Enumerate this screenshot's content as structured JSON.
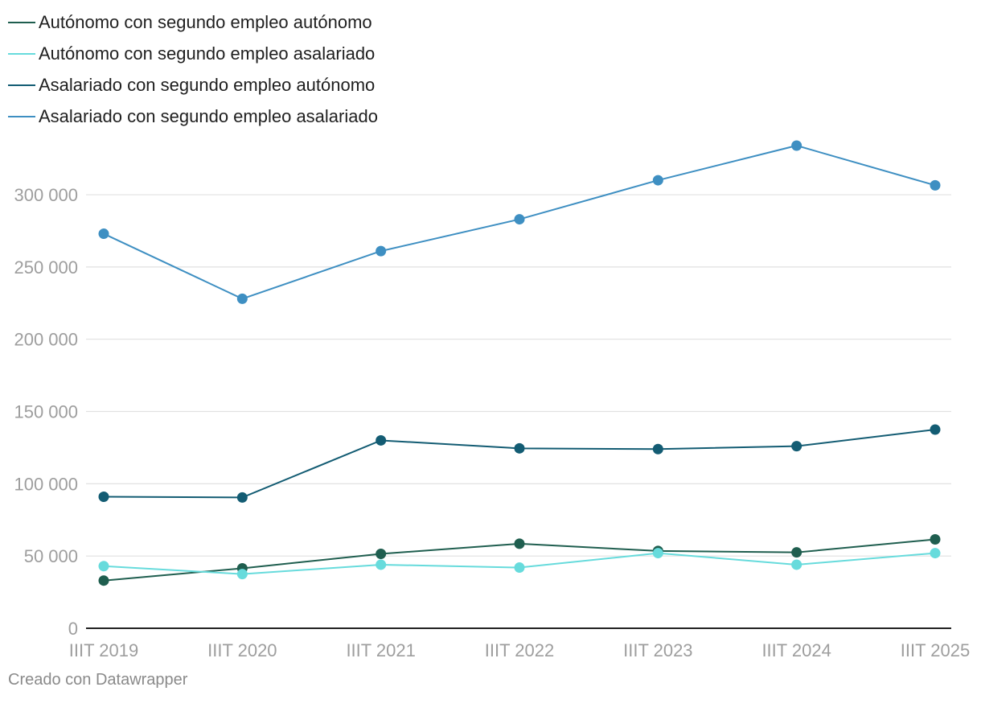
{
  "chart_data": {
    "type": "line",
    "title": "",
    "xlabel": "",
    "ylabel": "",
    "categories": [
      "IIIT 2019",
      "IIIT 2020",
      "IIIT 2021",
      "IIIT 2022",
      "IIIT 2023",
      "IIIT 2024",
      "IIIT 2025"
    ],
    "ylim": [
      0,
      330000
    ],
    "yticks": [
      0,
      50000,
      100000,
      150000,
      200000,
      250000,
      300000
    ],
    "ytick_labels": [
      "0",
      "50 000",
      "100 000",
      "150 000",
      "200 000",
      "250 000",
      "300 000"
    ],
    "grid": true,
    "legend_position": "top-left",
    "series": [
      {
        "name": "Autónomo con segundo empleo autónomo",
        "color": "#1f5e4f",
        "values": [
          33000,
          41500,
          51500,
          58500,
          53500,
          52500,
          61500
        ]
      },
      {
        "name": "Autónomo con segundo empleo asalariado",
        "color": "#67dbdc",
        "values": [
          43000,
          37500,
          44000,
          42000,
          52000,
          44000,
          52000
        ]
      },
      {
        "name": "Asalariado con segundo empleo autónomo",
        "color": "#135c73",
        "values": [
          91000,
          90500,
          130000,
          124500,
          124000,
          126000,
          137500
        ]
      },
      {
        "name": "Asalariado con segundo empleo asalariado",
        "color": "#3e8fc2",
        "values": [
          273000,
          228000,
          261000,
          283000,
          310000,
          334000,
          306500
        ]
      }
    ]
  },
  "footer": {
    "credit": "Creado con Datawrapper"
  }
}
